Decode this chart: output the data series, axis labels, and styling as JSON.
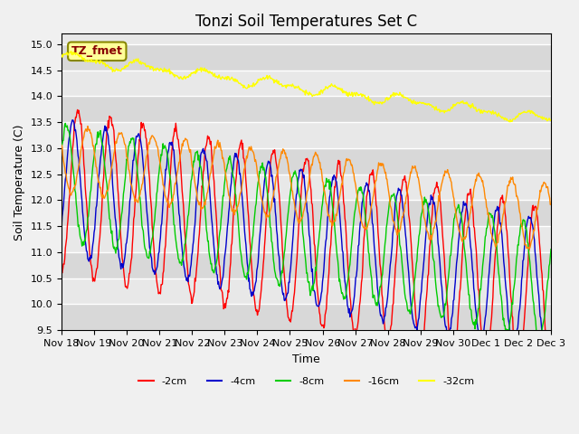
{
  "title": "Tonzi Soil Temperatures Set C",
  "xlabel": "Time",
  "ylabel": "Soil Temperature (C)",
  "ylim": [
    9.5,
    15.2
  ],
  "plot_bg_color": "#e8e8e8",
  "line_colors": {
    "-2cm": "#ff0000",
    "-4cm": "#0000cc",
    "-8cm": "#00cc00",
    "-16cm": "#ff8800",
    "-32cm": "#ffff00"
  },
  "xtick_labels": [
    "Nov 18",
    "Nov 19",
    "Nov 20",
    "Nov 21",
    "Nov 22",
    "Nov 23",
    "Nov 24",
    "Nov 25",
    "Nov 26",
    "Nov 27",
    "Nov 28",
    "Nov 29",
    "Nov 30",
    "Dec 1",
    "Dec 2",
    "Dec 3"
  ],
  "annotation_label": "TZ_fmet",
  "annotation_bg": "#ffff99",
  "annotation_text_color": "#880000",
  "annotation_border_color": "#888800"
}
